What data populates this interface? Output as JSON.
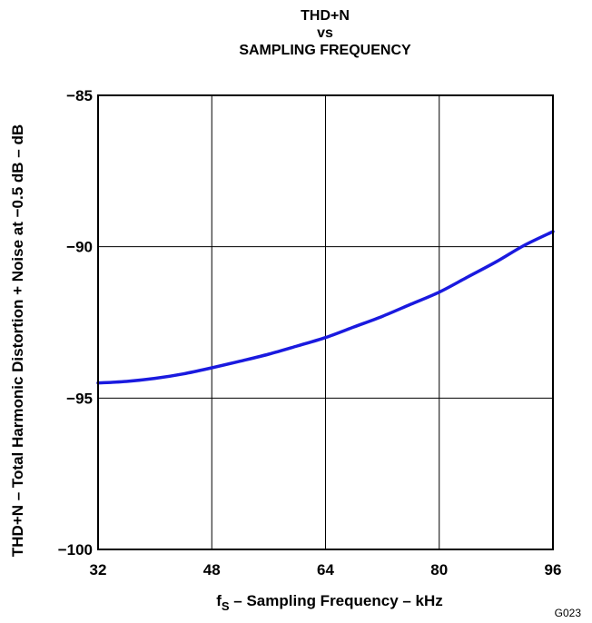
{
  "chart_data": {
    "type": "line",
    "title_lines": [
      "THD+N",
      "vs",
      "SAMPLING FREQUENCY"
    ],
    "xlabel_main": "f",
    "xlabel_sub": "S",
    "xlabel_rest": " – Sampling Frequency – kHz",
    "ylabel": "THD+N – Total Harmonic Distortion + Noise at −0.5 dB – dB",
    "xlim": [
      32,
      96
    ],
    "ylim": [
      -100,
      -85
    ],
    "xticks": [
      32,
      48,
      64,
      80,
      96
    ],
    "xtick_labels": [
      "32",
      "48",
      "64",
      "80",
      "96"
    ],
    "yticks": [
      -85,
      -90,
      -95,
      -100
    ],
    "ytick_labels": [
      "−85",
      "−90",
      "−95",
      "−100"
    ],
    "grid": true,
    "series": [
      {
        "color": "#1a1adf",
        "x": [
          32,
          36,
          40,
          44,
          48,
          52,
          56,
          60,
          64,
          68,
          72,
          76,
          80,
          84,
          88,
          92,
          96
        ],
        "y": [
          -94.5,
          -94.45,
          -94.35,
          -94.2,
          -94.0,
          -93.78,
          -93.55,
          -93.28,
          -93.0,
          -92.65,
          -92.3,
          -91.9,
          -91.5,
          -91.0,
          -90.5,
          -89.95,
          -89.5
        ]
      }
    ]
  },
  "figure_code": "G023"
}
